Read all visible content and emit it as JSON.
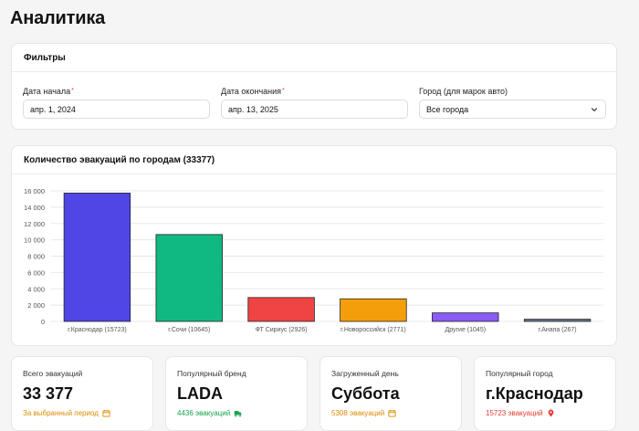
{
  "page": {
    "title": "Аналитика"
  },
  "filters": {
    "title": "Фильтры",
    "start_date": {
      "label": "Дата начала",
      "required_mark": "*",
      "value": "апр. 1, 2024"
    },
    "end_date": {
      "label": "Дата окончания",
      "required_mark": "*",
      "value": "апр. 13, 2025"
    },
    "city": {
      "label": "Город (для марок авто)",
      "value": "Все города"
    }
  },
  "chart": {
    "title": "Количество эвакуаций по городам (33377)"
  },
  "chart_data": {
    "type": "bar",
    "title": "Количество эвакуаций по городам (33377)",
    "categories": [
      "г.Краснодар (15723)",
      "г.Сочи (10645)",
      "ФТ Сириус (2926)",
      "г.Новороссийск (2771)",
      "Другие (1045)",
      "г.Анапа (267)"
    ],
    "values": [
      15723,
      10645,
      2926,
      2771,
      1045,
      267
    ],
    "colors": [
      "#4f46e5",
      "#10b981",
      "#ef4444",
      "#f59e0b",
      "#8b5cf6",
      "#64748b"
    ],
    "yticks": [
      "0",
      "2 000",
      "4 000",
      "6 000",
      "8 000",
      "10 000",
      "12 000",
      "14 000",
      "16 000"
    ],
    "ylim": [
      0,
      16000
    ],
    "grid": true,
    "xlabel": "",
    "ylabel": ""
  },
  "kpis": [
    {
      "label": "Всего эвакуаций",
      "value": "33 377",
      "sub": "За выбранный период",
      "sub_color": "#e08a00",
      "icon": "calendar-icon"
    },
    {
      "label": "Популярный бренд",
      "value": "LADA",
      "sub": "4436 эвакуаций",
      "sub_color": "#16a34a",
      "icon": "truck-icon"
    },
    {
      "label": "Загруженный день",
      "value": "Суббота",
      "sub": "5308 эвакуаций",
      "sub_color": "#e08a00",
      "icon": "calendar-icon"
    },
    {
      "label": "Популярный город",
      "value": "г.Краснодар",
      "sub": "15723 эвакуаций",
      "sub_color": "#e53935",
      "icon": "map-pin-icon"
    }
  ]
}
